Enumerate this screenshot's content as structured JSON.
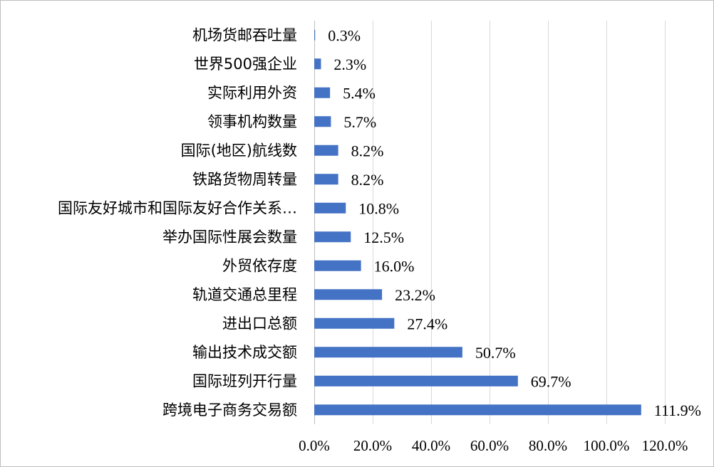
{
  "chart_data": {
    "type": "bar",
    "orientation": "horizontal",
    "title": "",
    "xlabel": "",
    "ylabel": "",
    "categories": [
      "机场货邮吞吐量",
      "世界500强企业",
      "实际利用外资",
      "领事机构数量",
      "国际(地区)航线数",
      "铁路货物周转量",
      "国际友好城市和国际友好合作关系…",
      "举办国际性展会数量",
      "外贸依存度",
      "轨道交通总里程",
      "进出口总额",
      "输出技术成交额",
      "国际班列开行量",
      "跨境电子商务交易额"
    ],
    "values": [
      0.3,
      2.3,
      5.4,
      5.7,
      8.2,
      8.2,
      10.8,
      12.5,
      16.0,
      23.2,
      27.4,
      50.7,
      69.7,
      111.9
    ],
    "value_labels": [
      "0.3%",
      "2.3%",
      "5.4%",
      "5.7%",
      "8.2%",
      "8.2%",
      "10.8%",
      "12.5%",
      "16.0%",
      "23.2%",
      "27.4%",
      "50.7%",
      "69.7%",
      "111.9%"
    ],
    "x_ticks": [
      0,
      20,
      40,
      60,
      80,
      100,
      120
    ],
    "x_tick_labels": [
      "0.0%",
      "20.0%",
      "40.0%",
      "60.0%",
      "80.0%",
      "100.0%",
      "120.0%"
    ],
    "xlim": [
      0,
      120
    ],
    "grid": true,
    "legend": "none",
    "colors": {
      "bar": "#4472c4",
      "grid": "#d9d9d9",
      "border": "#bfbfbf"
    }
  }
}
